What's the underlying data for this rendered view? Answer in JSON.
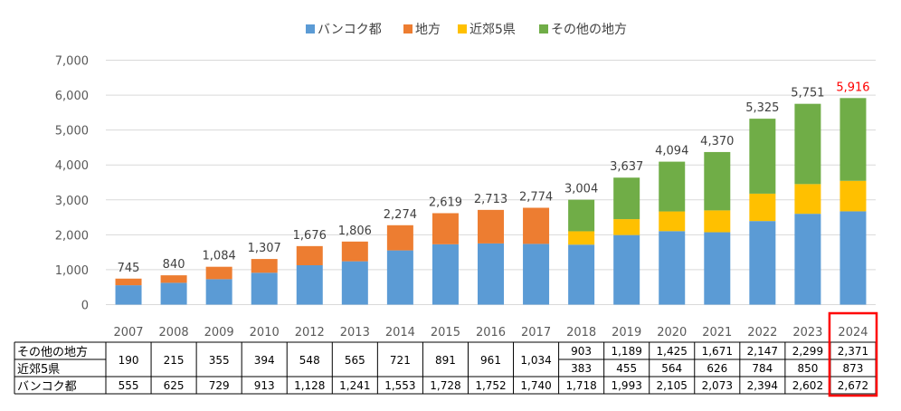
{
  "chart_data": {
    "type": "bar",
    "stacked": true,
    "categories": [
      "2007",
      "2008",
      "2009",
      "2010",
      "2012",
      "2013",
      "2014",
      "2015",
      "2016",
      "2017",
      "2018",
      "2019",
      "2020",
      "2021",
      "2022",
      "2023",
      "2024"
    ],
    "series": [
      {
        "name": "バンコク都",
        "color": "#5b9bd5",
        "values": [
          555,
          625,
          729,
          913,
          1128,
          1241,
          1553,
          1728,
          1752,
          1740,
          1718,
          1993,
          2105,
          2073,
          2394,
          2602,
          2672
        ]
      },
      {
        "name": "地方",
        "color": "#ed7d31",
        "values": [
          190,
          215,
          355,
          394,
          548,
          565,
          721,
          891,
          961,
          1034,
          null,
          null,
          null,
          null,
          null,
          null,
          null
        ]
      },
      {
        "name": "近郊5県",
        "color": "#ffc000",
        "values": [
          null,
          null,
          null,
          null,
          null,
          null,
          null,
          null,
          null,
          null,
          383,
          455,
          564,
          626,
          784,
          850,
          873
        ]
      },
      {
        "name": "その他の地方",
        "color": "#70ad47",
        "values": [
          null,
          null,
          null,
          null,
          null,
          null,
          null,
          null,
          null,
          null,
          903,
          1189,
          1425,
          1671,
          2147,
          2299,
          2371
        ]
      }
    ],
    "totals": [
      "745",
      "840",
      "1,084",
      "1,307",
      "1,676",
      "1,806",
      "2,274",
      "2,619",
      "2,713",
      "2,774",
      "3,004",
      "3,637",
      "4,094",
      "4,370",
      "5,325",
      "5,751",
      "5,916"
    ],
    "ylim": [
      0,
      7000
    ],
    "yticks": [
      "0",
      "1,000",
      "2,000",
      "3,000",
      "4,000",
      "5,000",
      "6,000",
      "7,000"
    ],
    "legend_position": "top",
    "grid": true,
    "highlight_category": "2024",
    "highlight_color": "#ff0000",
    "table": {
      "rows": [
        {
          "label": "その他の地方",
          "cells": [
            "190",
            "215",
            "355",
            "394",
            "548",
            "565",
            "721",
            "891",
            "961",
            "1,034",
            "903",
            "1,189",
            "1,425",
            "1,671",
            "2,147",
            "2,299",
            "2,371"
          ]
        },
        {
          "label": "近郊5県",
          "cells": [
            "",
            "",
            "",
            "",
            "",
            "",
            "",
            "",
            "",
            "",
            "383",
            "455",
            "564",
            "626",
            "784",
            "850",
            "873"
          ]
        },
        {
          "label": "バンコク都",
          "cells": [
            "555",
            "625",
            "729",
            "913",
            "1,128",
            "1,241",
            "1,553",
            "1,728",
            "1,752",
            "1,740",
            "1,718",
            "1,993",
            "2,105",
            "2,073",
            "2,394",
            "2,602",
            "2,672"
          ]
        }
      ]
    }
  }
}
